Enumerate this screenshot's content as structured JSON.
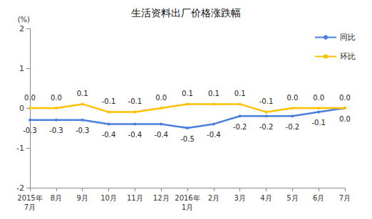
{
  "chart_data": {
    "type": "line",
    "title": "生活资料出厂价格涨跌幅",
    "y_label": "(%)",
    "categories": [
      "2015年\n7月",
      "8月",
      "9月",
      "10月",
      "11月",
      "12月",
      "2016年\n1月",
      "2月",
      "3月",
      "4月",
      "5月",
      "6月",
      "7月"
    ],
    "series": [
      {
        "name": "同比",
        "color": "#4a7fdc",
        "values": [
          -0.3,
          -0.3,
          -0.3,
          -0.4,
          -0.4,
          -0.4,
          -0.5,
          -0.4,
          -0.2,
          -0.2,
          -0.2,
          -0.1,
          0.0
        ],
        "value_labels": [
          "-0.3",
          "-0.3",
          "-0.3",
          "-0.4",
          "-0.4",
          "-0.4",
          "-0.5",
          "-0.4",
          "-0.2",
          "-0.2",
          "-0.2",
          "-0.1",
          "0.0"
        ]
      },
      {
        "name": "环比",
        "color": "#ffc000",
        "values": [
          0.0,
          0.0,
          0.1,
          -0.1,
          -0.1,
          0.0,
          0.1,
          0.1,
          0.1,
          -0.1,
          0.0,
          0.0,
          0.0
        ],
        "value_labels": [
          "0.0",
          "0.0",
          "0.1",
          "-0.1",
          "-0.1",
          "0.0",
          "0.1",
          "0.1",
          "0.1",
          "-0.1",
          "0.0",
          "0.0",
          "0.0"
        ]
      }
    ],
    "ylim": [
      -2,
      2
    ],
    "yticks": [
      -2,
      -1,
      0,
      1,
      2
    ],
    "grid": false,
    "legend": "right",
    "data_labels": true
  }
}
